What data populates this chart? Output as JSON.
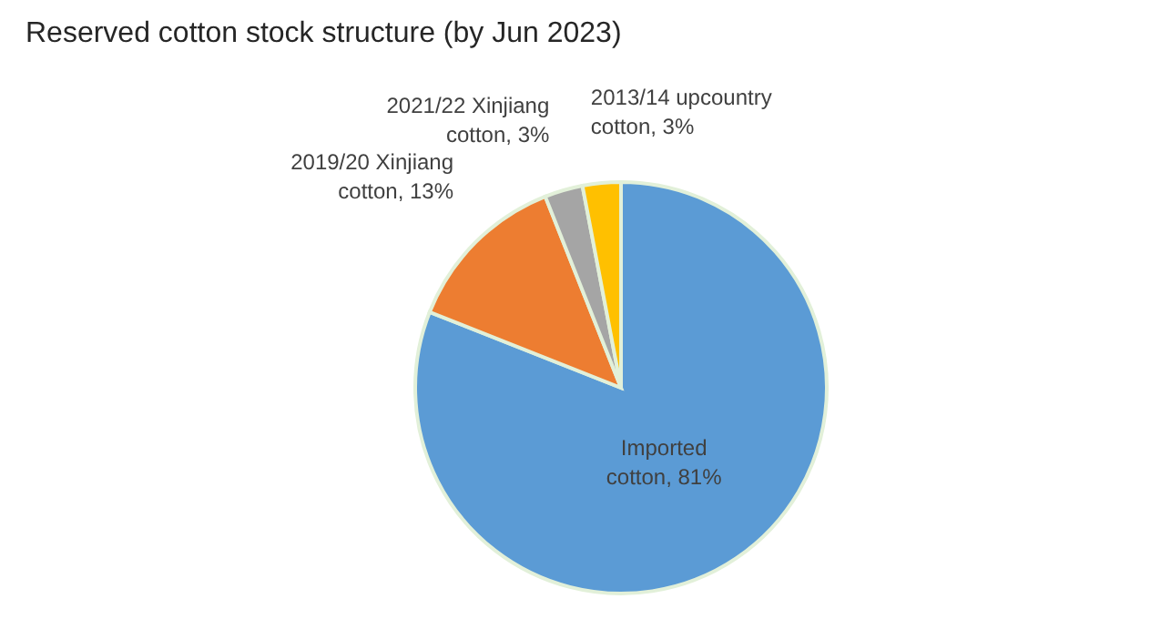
{
  "chart_data": {
    "type": "pie",
    "title": "Reserved cotton stock structure (by Jun 2023)",
    "categories": [
      "Imported cotton",
      "2019/20 Xinjiang cotton",
      "2021/22 Xinjiang cotton",
      "2013/14 upcountry cotton"
    ],
    "values": [
      81,
      13,
      3,
      3
    ],
    "value_labels": [
      "81%",
      "13%",
      "3%",
      "3%"
    ],
    "colors": [
      "#5b9bd5",
      "#ed7d31",
      "#a5a5a5",
      "#ffc000"
    ]
  }
}
